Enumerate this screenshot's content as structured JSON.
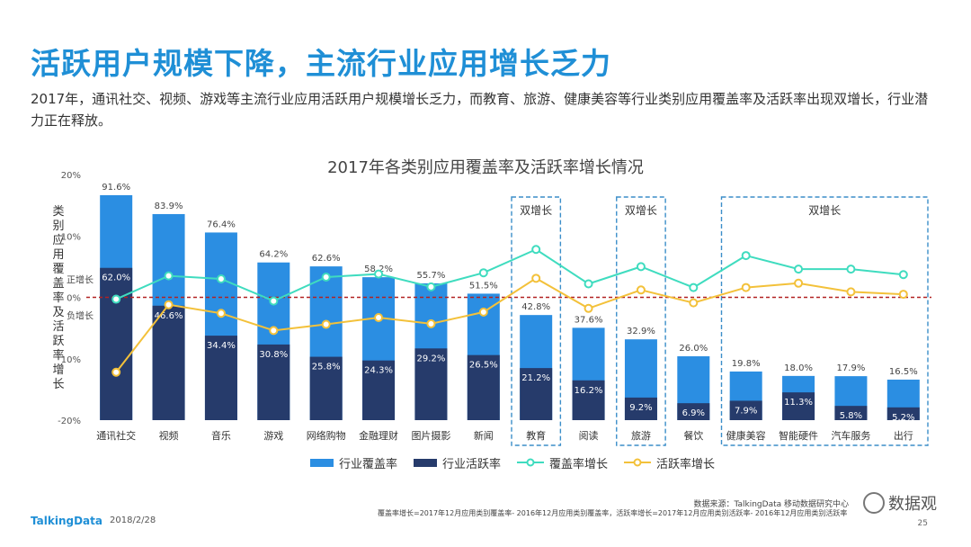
{
  "slide": {
    "title": "活跃用户规模下降，主流行业应用增长乏力",
    "subtitle": "2017年，通讯社交、视频、游戏等主流行业应用活跃用户规模增长乏力，而教育、旅游、健康美容等行业类别应用覆盖率及活跃率出现双增长，行业潜力正在释放。",
    "y_axis_label": "类别应用覆盖率及活跃率增长",
    "positive_label": "正增长",
    "negative_label": "负增长",
    "double_growth_label": "双增长"
  },
  "chart_data": {
    "type": "bar",
    "title": "2017年各类别应用覆盖率及活跃率增长情况",
    "categories": [
      "通讯社交",
      "视频",
      "音乐",
      "游戏",
      "网络购物",
      "金融理财",
      "图片摄影",
      "新闻",
      "教育",
      "阅读",
      "旅游",
      "餐饮",
      "健康美容",
      "智能硬件",
      "汽车服务",
      "出行"
    ],
    "series": [
      {
        "name": "行业覆盖率",
        "values": [
          91.6,
          83.9,
          76.4,
          64.2,
          62.6,
          58.2,
          55.7,
          51.5,
          42.8,
          37.6,
          32.9,
          26.0,
          19.8,
          18.0,
          17.9,
          16.5
        ]
      },
      {
        "name": "行业活跃率",
        "values": [
          62.0,
          46.6,
          34.4,
          30.8,
          25.8,
          24.3,
          29.2,
          26.5,
          21.2,
          16.2,
          9.2,
          6.9,
          7.9,
          11.3,
          5.8,
          5.2
        ]
      },
      {
        "name": "覆盖率增长",
        "values": [
          -0.3,
          3.5,
          3.0,
          -0.6,
          3.3,
          3.8,
          1.7,
          4.0,
          7.8,
          2.2,
          5.0,
          1.6,
          6.8,
          4.6,
          4.6,
          3.7
        ]
      },
      {
        "name": "活跃率增长",
        "values": [
          -12.2,
          -1.2,
          -2.6,
          -5.4,
          -4.4,
          -3.3,
          -4.3,
          -2.4,
          3.1,
          -1.8,
          1.2,
          -0.9,
          1.6,
          2.3,
          0.9,
          0.5
        ]
      }
    ],
    "y_left_ticks": [
      "20%",
      "10%",
      "0%",
      "10%",
      "-20%"
    ],
    "ylim": [
      -20,
      20
    ],
    "bar_value_range": [
      0,
      100
    ],
    "double_growth_groups": [
      [
        "教育"
      ],
      [
        "旅游"
      ],
      [
        "健康美容",
        "智能硬件",
        "汽车服务",
        "出行"
      ]
    ],
    "colors": {
      "coverage": "#2b8ee2",
      "active": "#263b6b",
      "coverage_growth": "#3fdcbf",
      "active_growth": "#f3c13a",
      "zero_line": "#b22222",
      "box": "#3b8ec9"
    }
  },
  "footer": {
    "logo": "TalkingData",
    "date": "2018/2/28",
    "source": "数据来源：TalkingData 移动数据研究中心",
    "note": "覆盖率增长=2017年12月应用类别覆盖率- 2016年12月应用类别覆盖率，活跃率增长=2017年12月应用类别活跃率- 2016年12月应用类别活跃率",
    "page": "25",
    "watermark": "数据观"
  }
}
